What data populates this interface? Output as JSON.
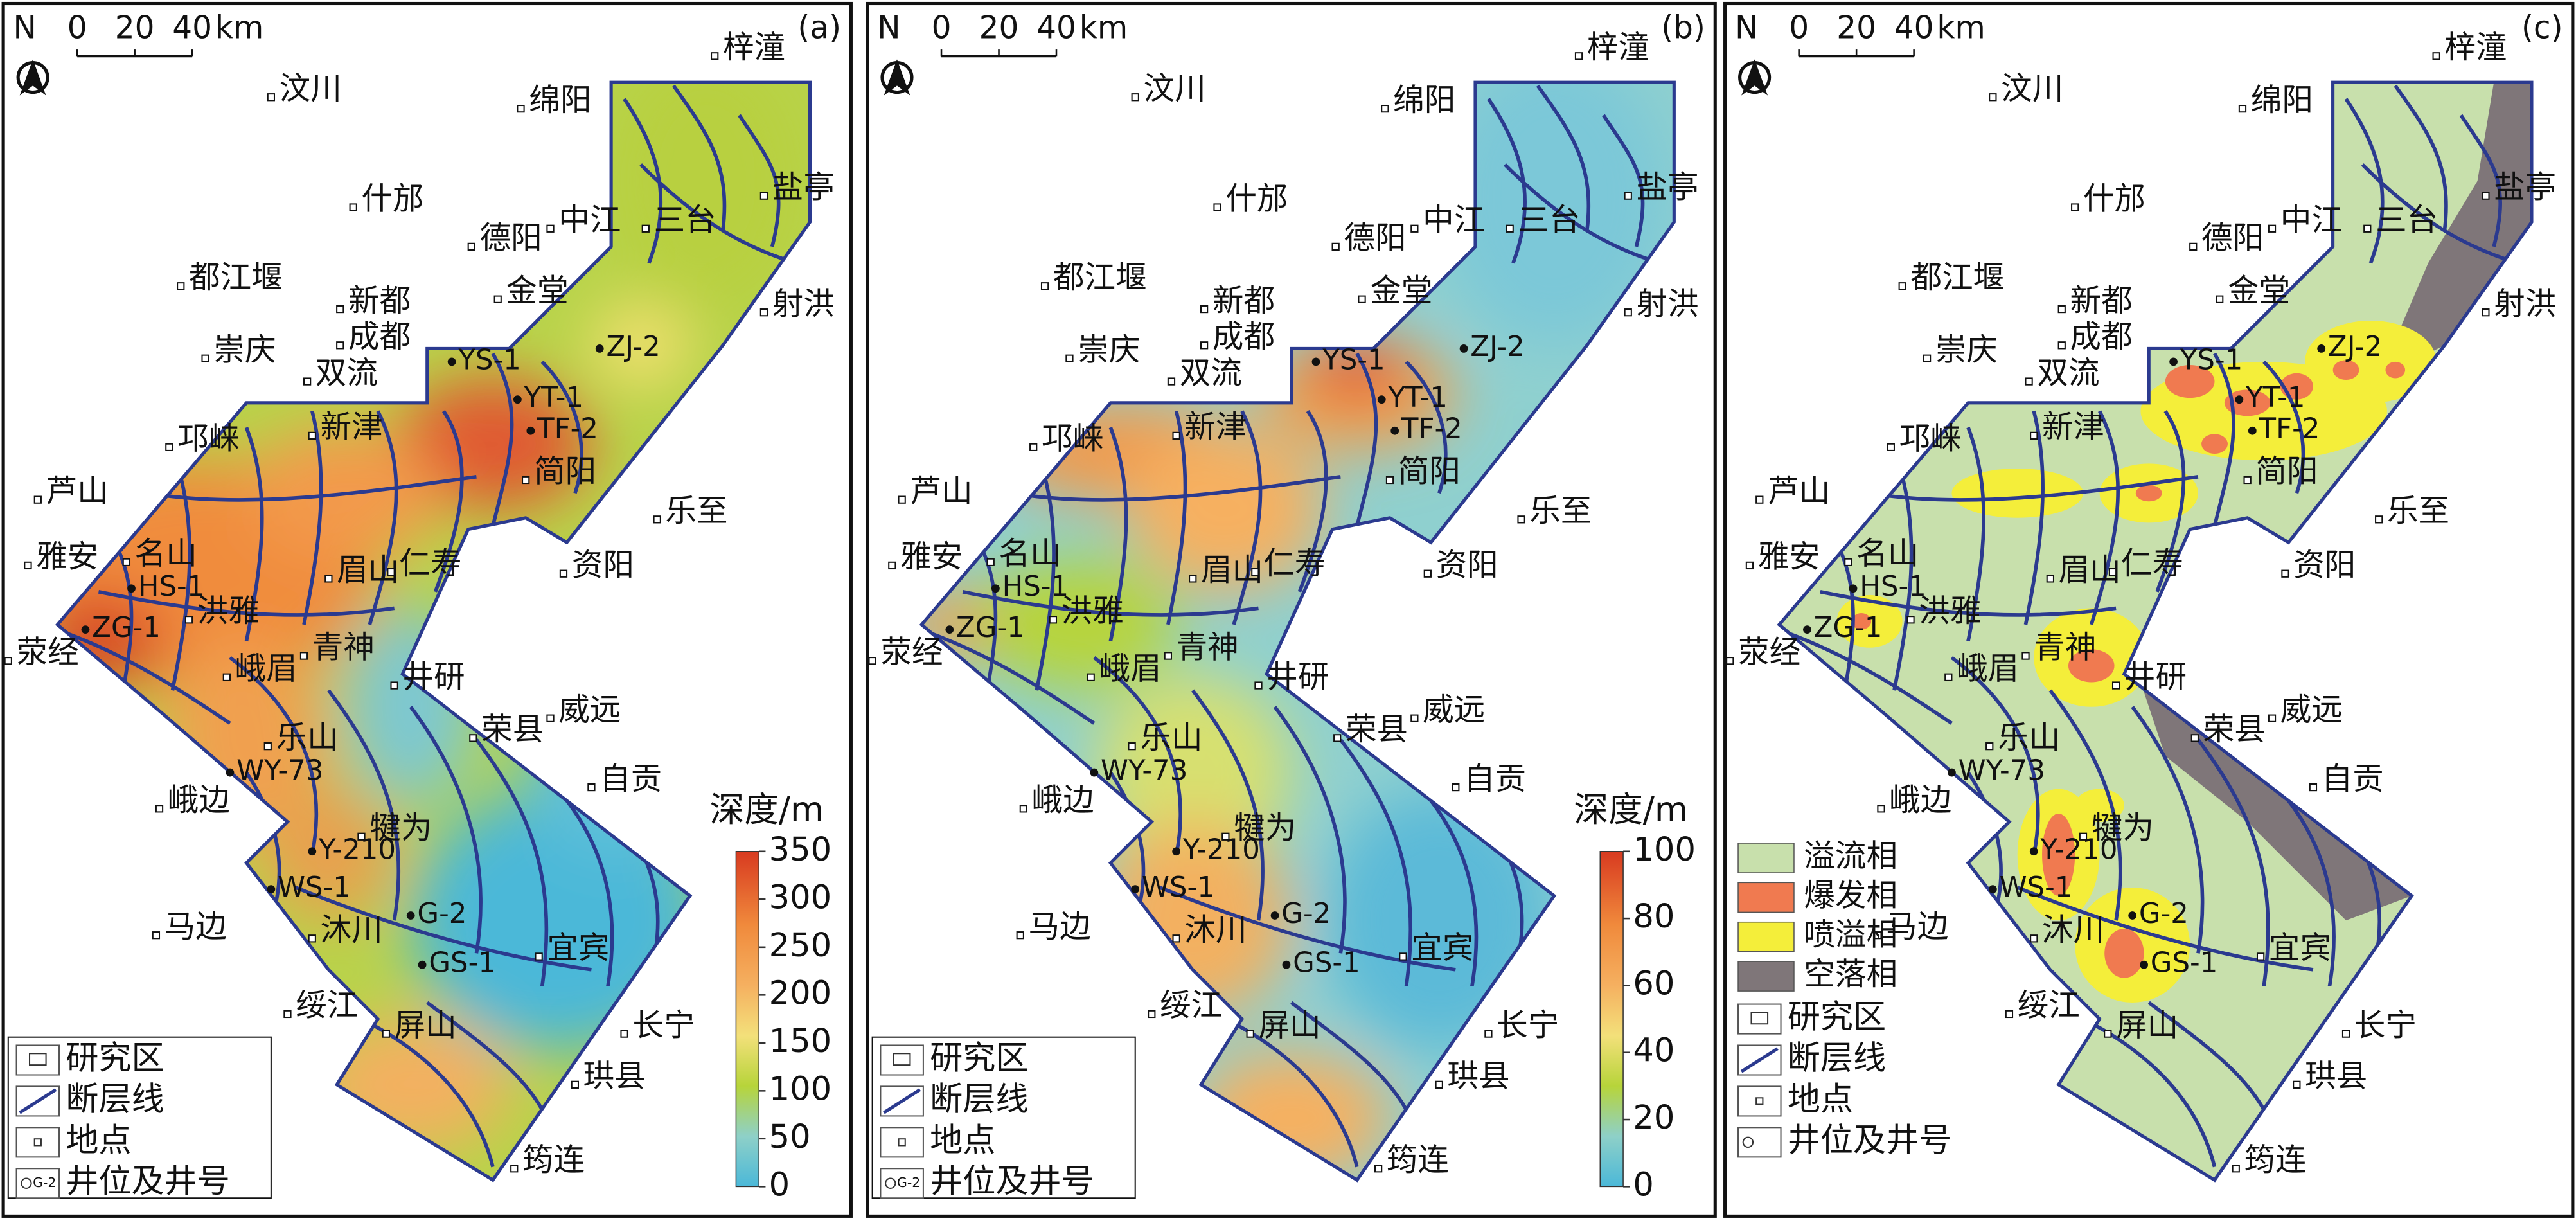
{
  "places": [
    "汶川",
    "梓潼",
    "绵阳",
    "什邡",
    "德阳",
    "中江",
    "盐亭",
    "三台",
    "都江堰",
    "新都",
    "金堂",
    "射洪",
    "崇庆",
    "成都",
    "双流",
    "新津",
    "邛崃",
    "简阳",
    "乐至",
    "芦山",
    "名山",
    "眉山",
    "仁寿",
    "资阳",
    "雅安",
    "洪雅",
    "青神",
    "荥经",
    "井研",
    "峨眉",
    "荣县",
    "威远",
    "乐山",
    "自贡",
    "峨边",
    "犍为",
    "马边",
    "宜宾",
    "沐川",
    "绥江",
    "屏山",
    "长宁",
    "珙县",
    "筠连"
  ],
  "wells": [
    "YS-1",
    "YT-1",
    "TF-2",
    "ZJ-2",
    "HS-1",
    "ZG-1",
    "WY-73",
    "Y-210",
    "WS-1",
    "G-2",
    "GS-1"
  ],
  "panels": [
    {
      "label": "(a)",
      "north": "N",
      "scale_ticks": [
        0,
        20,
        40
      ],
      "scale_unit": "km",
      "colorbar": {
        "title": "深度/m",
        "clim": [
          0,
          350
        ],
        "ticks": [
          0,
          50,
          100,
          150,
          200,
          250,
          300,
          350
        ]
      },
      "legend": [
        "研究区",
        "断层线",
        "地点",
        "井位及井号"
      ],
      "well_symbol_label": "G-2"
    },
    {
      "label": "(b)",
      "north": "N",
      "scale_ticks": [
        0,
        20,
        40
      ],
      "scale_unit": "km",
      "colorbar": {
        "title": "深度/m",
        "clim": [
          0,
          100
        ],
        "ticks": [
          0,
          20,
          40,
          60,
          80,
          100
        ]
      },
      "legend": [
        "研究区",
        "断层线",
        "地点",
        "井位及井号"
      ],
      "well_symbol_label": "G-2"
    },
    {
      "label": "(c)",
      "north": "N",
      "scale_ticks": [
        0,
        20,
        40
      ],
      "scale_unit": "km",
      "facies": [
        {
          "name": "溢流相",
          "color": "#c8e0ac"
        },
        {
          "name": "爆发相",
          "color": "#f07a50"
        },
        {
          "name": "喷溢相",
          "color": "#f4ee3a"
        },
        {
          "name": "空落相",
          "color": "#7f7679"
        }
      ],
      "legend": [
        "研究区",
        "断层线",
        "地点",
        "井位及井号"
      ]
    }
  ]
}
